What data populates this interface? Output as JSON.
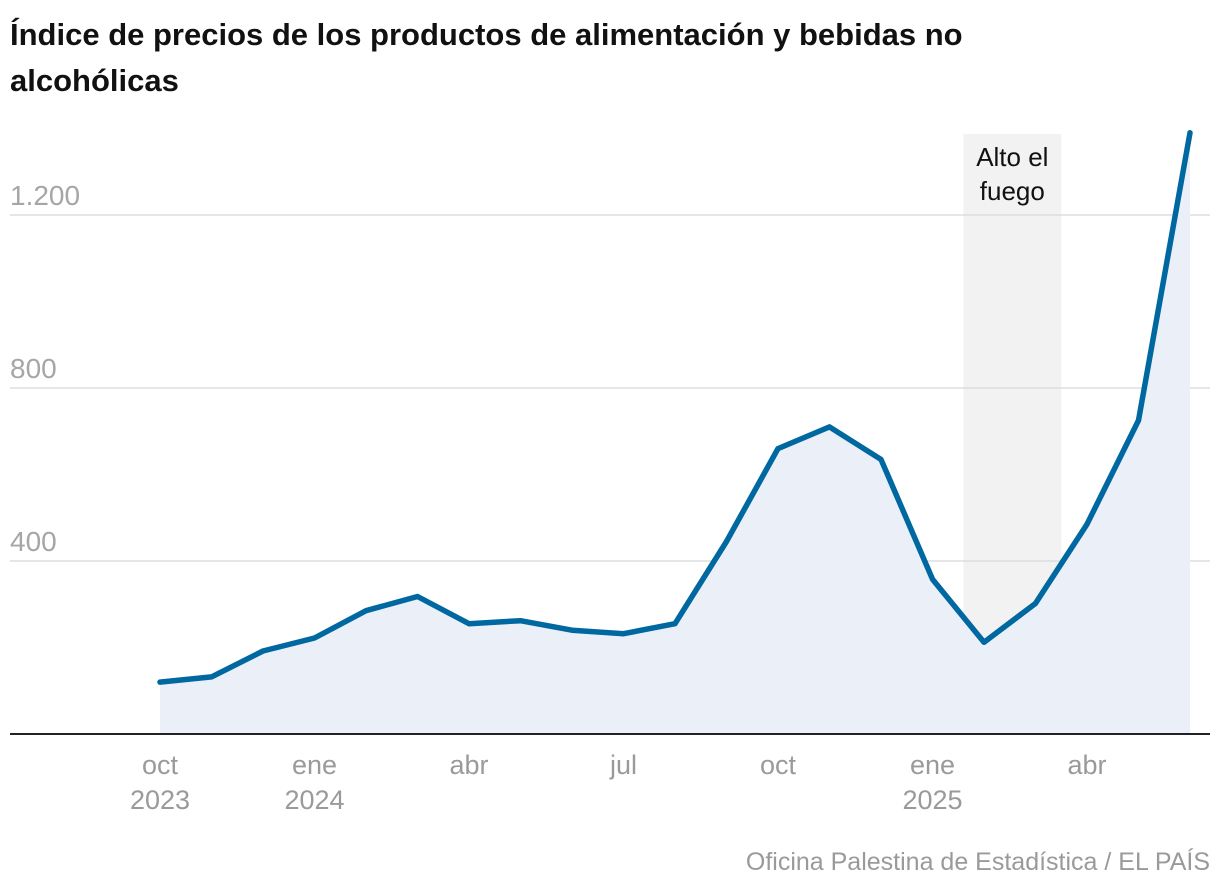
{
  "title": "Índice de precios de los productos de alimentación y bebidas no alcohólicas",
  "source": "Oficina Palestina de Estadística / EL PAÍS",
  "chart_data": {
    "type": "area",
    "title": "Índice de precios de los productos de alimentación y bebidas no alcohólicas",
    "xlabel": "",
    "ylabel": "",
    "ylim": [
      0,
      1400
    ],
    "yticks": [
      400,
      800,
      1200
    ],
    "ytick_labels": [
      "400",
      "800",
      "1.200"
    ],
    "grid": true,
    "x": [
      "2023-10",
      "2023-11",
      "2023-12",
      "2024-01",
      "2024-02",
      "2024-03",
      "2024-04",
      "2024-05",
      "2024-06",
      "2024-07",
      "2024-08",
      "2024-09",
      "2024-10",
      "2024-11",
      "2024-12",
      "2025-01",
      "2025-02",
      "2025-03",
      "2025-04",
      "2025-05",
      "2025-06"
    ],
    "series": [
      {
        "name": "Índice de precios",
        "values": [
          120,
          132,
          192,
          222,
          285,
          318,
          255,
          262,
          240,
          232,
          255,
          445,
          660,
          710,
          635,
          358,
          212,
          302,
          485,
          725,
          1390
        ],
        "color": "#0068a0",
        "fill": "#ebf0f8"
      }
    ],
    "xticks": [
      {
        "index": 0,
        "label": "oct",
        "year": "2023"
      },
      {
        "index": 3,
        "label": "ene",
        "year": "2024"
      },
      {
        "index": 6,
        "label": "abr",
        "year": ""
      },
      {
        "index": 9,
        "label": "jul",
        "year": ""
      },
      {
        "index": 12,
        "label": "oct",
        "year": ""
      },
      {
        "index": 15,
        "label": "ene",
        "year": "2025"
      },
      {
        "index": 18,
        "label": "abr",
        "year": ""
      }
    ],
    "annotations": [
      {
        "type": "band",
        "label_lines": [
          "Alto el",
          "fuego"
        ],
        "from_index": 15.6,
        "to_index": 17.5,
        "color": "#f2f2f2"
      }
    ]
  }
}
